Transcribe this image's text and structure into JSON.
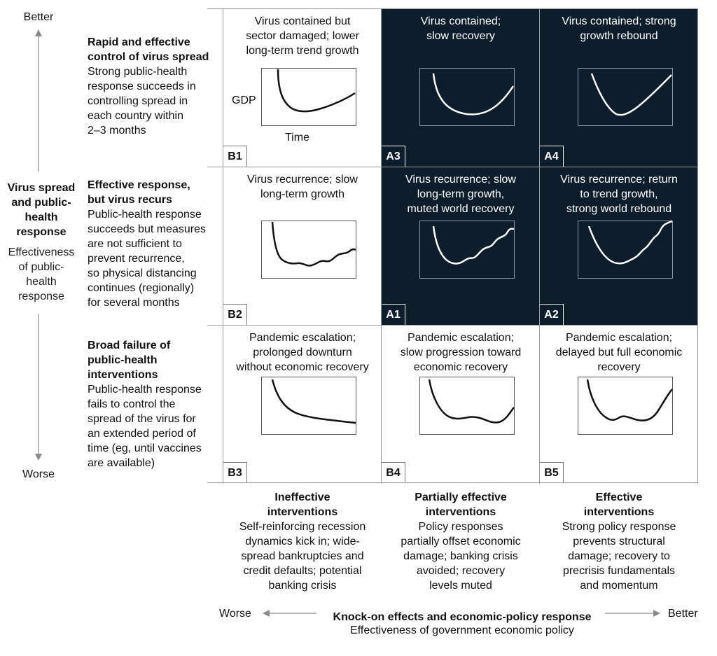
{
  "y_axis": {
    "top_label": "Better",
    "bottom_label": "Worse",
    "title": "Virus spread and public-health response",
    "title_lines": [
      "Virus spread",
      "and public-",
      "health",
      "response"
    ],
    "subtitle_lines": [
      "Effectiveness",
      "of public-",
      "health",
      "response"
    ]
  },
  "row_headers": [
    {
      "title_lines": [
        "Rapid and effective",
        "control of virus spread"
      ],
      "body_lines": [
        "Strong public-health",
        "response succeeds in",
        "controlling spread in",
        "each country within",
        "2–3 months"
      ]
    },
    {
      "title_lines": [
        "Effective response,",
        "but virus recurs"
      ],
      "body_lines": [
        "Public-health response",
        "succeeds but measures",
        "are not sufficient to",
        "prevent recurrence,",
        "so physical distancing",
        "continues (regionally)",
        "for several months"
      ]
    },
    {
      "title_lines": [
        "Broad failure of",
        "public-health",
        "interventions"
      ],
      "body_lines": [
        "Public-health response",
        "fails to control the",
        "spread of the virus for",
        "an extended period of",
        "time (eg, until vaccines",
        "are available)"
      ]
    }
  ],
  "cells": [
    [
      {
        "id": "B1",
        "dark": false,
        "title_lines": [
          "Virus contained but",
          "sector damaged; lower",
          "long-term trend growth"
        ],
        "ylabel": "GDP",
        "xlabel": "Time",
        "curve": "b1"
      },
      {
        "id": "A3",
        "dark": true,
        "title_lines": [
          "Virus contained;",
          "slow recovery"
        ],
        "curve": "a3"
      },
      {
        "id": "A4",
        "dark": true,
        "title_lines": [
          "Virus contained; strong",
          "growth rebound"
        ],
        "curve": "a4"
      }
    ],
    [
      {
        "id": "B2",
        "dark": false,
        "title_lines": [
          "Virus recurrence; slow",
          "long-term growth"
        ],
        "curve": "b2"
      },
      {
        "id": "A1",
        "dark": true,
        "title_lines": [
          "Virus recurrence; slow",
          "long-term growth,",
          "muted world recovery"
        ],
        "curve": "a1"
      },
      {
        "id": "A2",
        "dark": true,
        "title_lines": [
          "Virus recurrence; return",
          "to trend growth,",
          "strong world rebound"
        ],
        "curve": "a2"
      }
    ],
    [
      {
        "id": "B3",
        "dark": false,
        "title_lines": [
          "Pandemic escalation;",
          "prolonged downturn",
          "without economic recovery"
        ],
        "curve": "b3"
      },
      {
        "id": "B4",
        "dark": false,
        "title_lines": [
          "Pandemic escalation;",
          "slow progression toward",
          "economic recovery"
        ],
        "curve": "b4"
      },
      {
        "id": "B5",
        "dark": false,
        "title_lines": [
          "Pandemic escalation;",
          "delayed but full economic",
          "recovery"
        ],
        "curve": "b5"
      }
    ]
  ],
  "column_headers": [
    {
      "title_lines": [
        "Ineffective",
        "interventions"
      ],
      "body_lines": [
        "Self-reinforcing recession",
        "dynamics kick in; wide-",
        "spread bankruptcies and",
        "credit defaults; potential",
        "banking crisis"
      ]
    },
    {
      "title_lines": [
        "Partially effective",
        "interventions"
      ],
      "body_lines": [
        "Policy responses",
        "partially offset economic",
        "damage; banking crisis",
        "avoided; recovery",
        "levels muted"
      ]
    },
    {
      "title_lines": [
        "Effective",
        "interventions"
      ],
      "body_lines": [
        "Strong policy response",
        "prevents structural",
        "damage; recovery to",
        "precrisis fundamentals",
        "and momentum"
      ]
    }
  ],
  "x_axis": {
    "left_label": "Worse",
    "right_label": "Better",
    "title": "Knock-on effects and economic-policy response",
    "subtitle": "Effectiveness of government economic policy"
  },
  "colors": {
    "dark_cell": "#0e1d2c",
    "grid_line": "#9a9a9a",
    "arrow": "#8a8a8a"
  }
}
